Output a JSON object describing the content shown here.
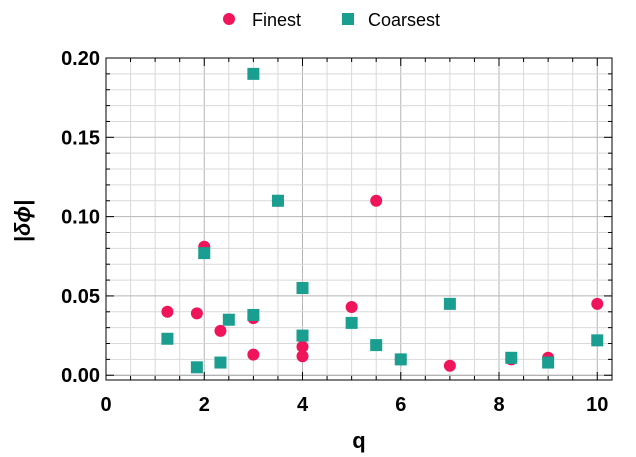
{
  "chart_data": {
    "type": "scatter",
    "xlabel": "q",
    "ylabel": "|δϕ|",
    "xlim": [
      0,
      10.3
    ],
    "ylim": [
      -0.003,
      0.2
    ],
    "x_ticks": [
      0,
      2,
      4,
      6,
      8,
      10
    ],
    "x_tick_labels": [
      "0",
      "2",
      "4",
      "6",
      "8",
      "10"
    ],
    "y_ticks": [
      0.0,
      0.05,
      0.1,
      0.15,
      0.2
    ],
    "y_tick_labels": [
      "0.00",
      "0.05",
      "0.10",
      "0.15",
      "0.20"
    ],
    "grid": true,
    "legend_position": "top",
    "series": [
      {
        "name": "Finest",
        "marker": "circle",
        "color": "#f0145a",
        "points": [
          {
            "x": 1.25,
            "y": 0.04
          },
          {
            "x": 1.85,
            "y": 0.039
          },
          {
            "x": 2.0,
            "y": 0.081
          },
          {
            "x": 2.33,
            "y": 0.028
          },
          {
            "x": 3.0,
            "y": 0.036
          },
          {
            "x": 3.0,
            "y": 0.013
          },
          {
            "x": 3.5,
            "y": 0.11
          },
          {
            "x": 4.0,
            "y": 0.018
          },
          {
            "x": 4.0,
            "y": 0.012
          },
          {
            "x": 5.0,
            "y": 0.043
          },
          {
            "x": 5.5,
            "y": 0.11
          },
          {
            "x": 6.0,
            "y": 0.01
          },
          {
            "x": 7.0,
            "y": 0.006
          },
          {
            "x": 8.25,
            "y": 0.01
          },
          {
            "x": 9.0,
            "y": 0.011
          },
          {
            "x": 10.0,
            "y": 0.045
          }
        ]
      },
      {
        "name": "Coarsest",
        "marker": "square",
        "color": "#1a9e8f",
        "points": [
          {
            "x": 1.25,
            "y": 0.023
          },
          {
            "x": 1.85,
            "y": 0.005
          },
          {
            "x": 2.0,
            "y": 0.077
          },
          {
            "x": 2.33,
            "y": 0.008
          },
          {
            "x": 2.5,
            "y": 0.035
          },
          {
            "x": 3.0,
            "y": 0.19
          },
          {
            "x": 3.0,
            "y": 0.038
          },
          {
            "x": 3.5,
            "y": 0.11
          },
          {
            "x": 4.0,
            "y": 0.055
          },
          {
            "x": 4.0,
            "y": 0.025
          },
          {
            "x": 5.0,
            "y": 0.033
          },
          {
            "x": 5.5,
            "y": 0.019
          },
          {
            "x": 6.0,
            "y": 0.01
          },
          {
            "x": 7.0,
            "y": 0.045
          },
          {
            "x": 8.25,
            "y": 0.011
          },
          {
            "x": 9.0,
            "y": 0.008
          },
          {
            "x": 10.0,
            "y": 0.022
          }
        ]
      }
    ]
  }
}
